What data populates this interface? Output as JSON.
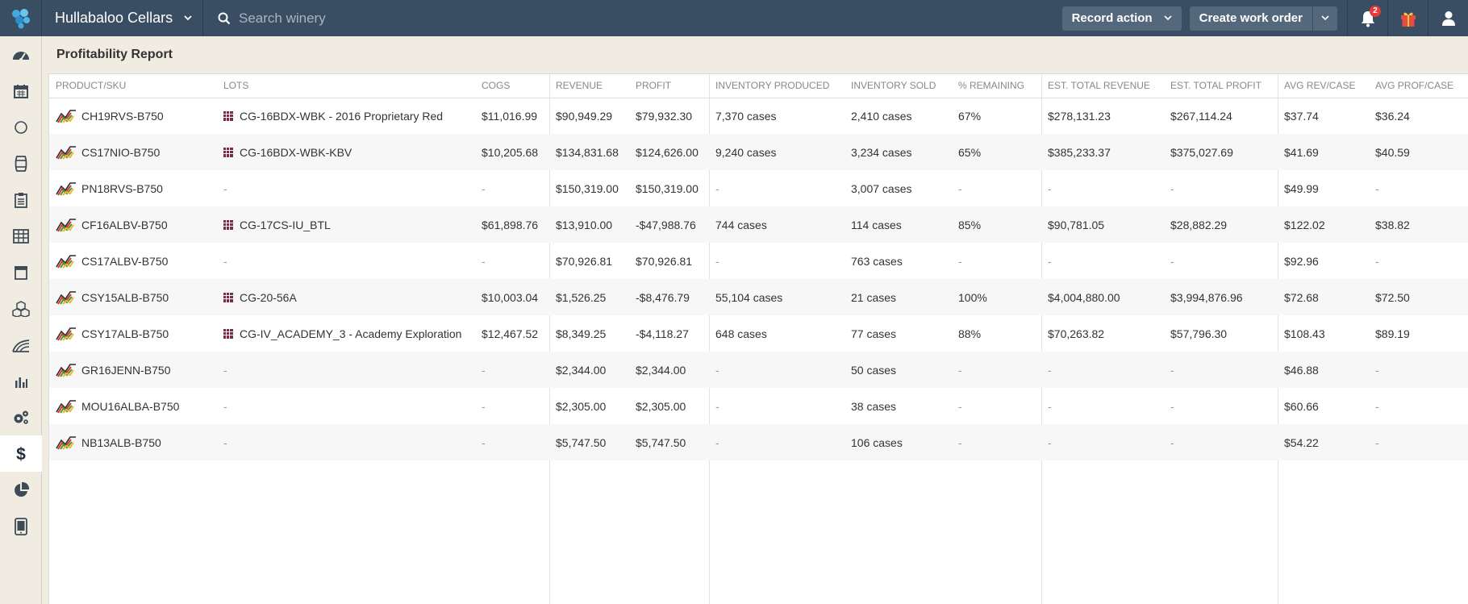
{
  "app": {
    "winery_name": "Hullabaloo Cellars",
    "search_placeholder": "Search winery",
    "record_action_label": "Record action",
    "create_work_order_label": "Create work order",
    "notification_count": "2",
    "colors": {
      "topbar": "#3a4e63",
      "button": "#54687c",
      "badge": "#e63b3b",
      "lot_icon": "#7d2a45",
      "gift": "#e84c3d"
    }
  },
  "sidebar": {
    "items": [
      {
        "name": "dashboard-icon"
      },
      {
        "name": "calendar-icon"
      },
      {
        "name": "circle-icon"
      },
      {
        "name": "barrel-icon"
      },
      {
        "name": "clipboard-icon"
      },
      {
        "name": "grid-icon"
      },
      {
        "name": "archive-icon"
      },
      {
        "name": "cubes-icon"
      },
      {
        "name": "vineyard-icon"
      },
      {
        "name": "bar-chart-icon"
      },
      {
        "name": "gears-icon"
      },
      {
        "name": "dollar-icon",
        "active": true
      },
      {
        "name": "pie-chart-icon"
      },
      {
        "name": "mobile-icon"
      }
    ]
  },
  "report": {
    "title": "Profitability Report",
    "columns": {
      "sku": "PRODUCT/SKU",
      "lots": "LOTS",
      "cogs": "COGS",
      "revenue": "REVENUE",
      "profit": "PROFIT",
      "inv_produced": "INVENTORY PRODUCED",
      "inv_sold": "INVENTORY SOLD",
      "remaining": "% REMAINING",
      "est_revenue": "EST. TOTAL REVENUE",
      "est_profit": "EST. TOTAL PROFIT",
      "avg_rev": "AVG REV/CASE",
      "avg_prof": "AVG PROF/CASE"
    },
    "rows": [
      {
        "sku": "CH19RVS-B750",
        "lot": "CG-16BDX-WBK - 2016 Proprietary Red",
        "cogs": "$11,016.99",
        "revenue": "$90,949.29",
        "profit": "$79,932.30",
        "inv_produced": "7,370 cases",
        "inv_sold": "2,410 cases",
        "remaining": "67%",
        "est_revenue": "$278,131.23",
        "est_profit": "$267,114.24",
        "avg_rev": "$37.74",
        "avg_prof": "$36.24"
      },
      {
        "sku": "CS17NIO-B750",
        "lot": "CG-16BDX-WBK-KBV",
        "cogs": "$10,205.68",
        "revenue": "$134,831.68",
        "profit": "$124,626.00",
        "inv_produced": "9,240 cases",
        "inv_sold": "3,234 cases",
        "remaining": "65%",
        "est_revenue": "$385,233.37",
        "est_profit": "$375,027.69",
        "avg_rev": "$41.69",
        "avg_prof": "$40.59"
      },
      {
        "sku": "PN18RVS-B750",
        "lot": "-",
        "cogs": "-",
        "revenue": "$150,319.00",
        "profit": "$150,319.00",
        "inv_produced": "-",
        "inv_sold": "3,007 cases",
        "remaining": "-",
        "est_revenue": "-",
        "est_profit": "-",
        "avg_rev": "$49.99",
        "avg_prof": "-"
      },
      {
        "sku": "CF16ALBV-B750",
        "lot": "CG-17CS-IU_BTL",
        "cogs": "$61,898.76",
        "revenue": "$13,910.00",
        "profit": "-$47,988.76",
        "inv_produced": "744 cases",
        "inv_sold": "114 cases",
        "remaining": "85%",
        "est_revenue": "$90,781.05",
        "est_profit": "$28,882.29",
        "avg_rev": "$122.02",
        "avg_prof": "$38.82"
      },
      {
        "sku": "CS17ALBV-B750",
        "lot": "-",
        "cogs": "-",
        "revenue": "$70,926.81",
        "profit": "$70,926.81",
        "inv_produced": "-",
        "inv_sold": "763 cases",
        "remaining": "-",
        "est_revenue": "-",
        "est_profit": "-",
        "avg_rev": "$92.96",
        "avg_prof": "-"
      },
      {
        "sku": "CSY15ALB-B750",
        "lot": "CG-20-56A",
        "cogs": "$10,003.04",
        "revenue": "$1,526.25",
        "profit": "-$8,476.79",
        "inv_produced": "55,104 cases",
        "inv_sold": "21 cases",
        "remaining": "100%",
        "est_revenue": "$4,004,880.00",
        "est_profit": "$3,994,876.96",
        "avg_rev": "$72.68",
        "avg_prof": "$72.50"
      },
      {
        "sku": "CSY17ALB-B750",
        "lot": "CG-IV_ACADEMY_3 - Academy Exploration",
        "cogs": "$12,467.52",
        "revenue": "$8,349.25",
        "profit": "-$4,118.27",
        "inv_produced": "648 cases",
        "inv_sold": "77 cases",
        "remaining": "88%",
        "est_revenue": "$70,263.82",
        "est_profit": "$57,796.30",
        "avg_rev": "$108.43",
        "avg_prof": "$89.19"
      },
      {
        "sku": "GR16JENN-B750",
        "lot": "-",
        "cogs": "-",
        "revenue": "$2,344.00",
        "profit": "$2,344.00",
        "inv_produced": "-",
        "inv_sold": "50 cases",
        "remaining": "-",
        "est_revenue": "-",
        "est_profit": "-",
        "avg_rev": "$46.88",
        "avg_prof": "-"
      },
      {
        "sku": "MOU16ALBA-B750",
        "lot": "-",
        "cogs": "-",
        "revenue": "$2,305.00",
        "profit": "$2,305.00",
        "inv_produced": "-",
        "inv_sold": "38 cases",
        "remaining": "-",
        "est_revenue": "-",
        "est_profit": "-",
        "avg_rev": "$60.66",
        "avg_prof": "-"
      },
      {
        "sku": "NB13ALB-B750",
        "lot": "-",
        "cogs": "-",
        "revenue": "$5,747.50",
        "profit": "$5,747.50",
        "inv_produced": "-",
        "inv_sold": "106 cases",
        "remaining": "-",
        "est_revenue": "-",
        "est_profit": "-",
        "avg_rev": "$54.22",
        "avg_prof": "-"
      }
    ]
  }
}
